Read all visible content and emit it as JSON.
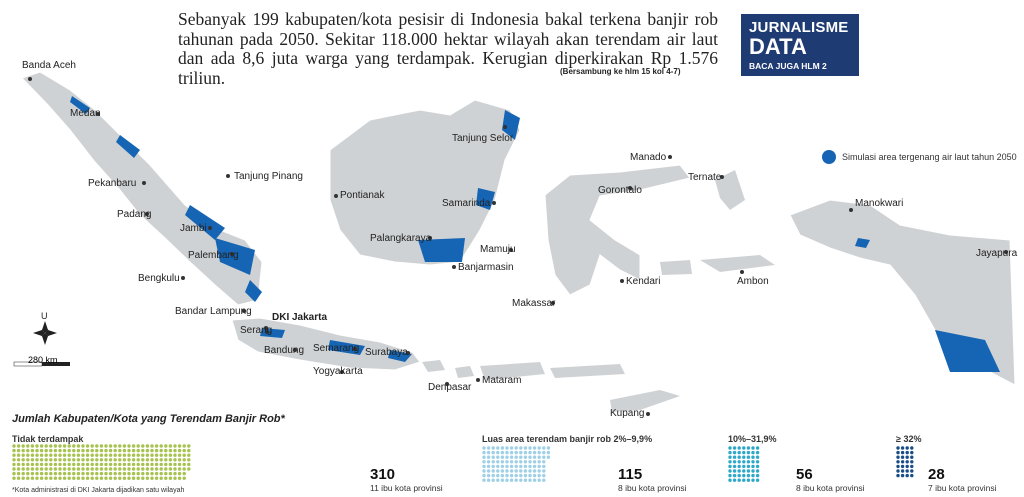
{
  "headline": "Sebanyak 199 kabupaten/kota pesisir di Indonesia bakal terkena banjir rob tahunan pada 2050. Sekitar 118.000 hektar wilayah akan terendam air laut dan ada 8,6 juta warga yang terdampak. Kerugian diperkirakan Rp 1.576 triliun.",
  "continued": "(Bersambung ke hlm 15 kol 4-7)",
  "badge": {
    "line1": "JURNALISME",
    "line2": "DATA",
    "line3": "BACA JUGA HLM 2"
  },
  "map_legend": "Simulasi area tergenang air laut tahun 2050",
  "cities": {
    "banda_aceh": "Banda Aceh",
    "medan": "Medan",
    "pekanbaru": "Pekanbaru",
    "tanjung_pinang": "Tanjung Pinang",
    "padang": "Padang",
    "jambi": "Jambi",
    "palembang": "Palembang",
    "bengkulu": "Bengkulu",
    "bandar_lampung": "Bandar Lampung",
    "serang": "Serang",
    "dki_jakarta": "DKI Jakarta",
    "bandung": "Bandung",
    "semarang": "Semarang",
    "yogyakarta": "Yogyakarta",
    "surabaya": "Surabaya",
    "denpasar": "Denpasar",
    "mataram": "Mataram",
    "kupang": "Kupang",
    "pontianak": "Pontianak",
    "palangkaraya": "Palangkaraya",
    "banjarmasin": "Banjarmasin",
    "samarinda": "Samarinda",
    "tanjung_selor": "Tanjung Selor",
    "mamuju": "Mamuju",
    "makassar": "Makassar",
    "kendari": "Kendari",
    "gorontalo": "Gorontalo",
    "manado": "Manado",
    "ternate": "Ternate",
    "ambon": "Ambon",
    "manokwari": "Manokwari",
    "jayapura": "Jayapura"
  },
  "scale": {
    "north": "U",
    "distance": "280 km"
  },
  "chart_title": "Jumlah Kabupaten/Kota yang Terendam Banjir Rob*",
  "chart_data": {
    "type": "table",
    "groups": [
      {
        "label": "Tidak terdampak",
        "count": "310",
        "note": "11 ibu kota provinsi",
        "color": "#a7c24f"
      },
      {
        "label": "Luas area terendam banjir rob 2%–9,9%",
        "count": "115",
        "note": "8 ibu kota provinsi",
        "color": "#9ed0e6"
      },
      {
        "label": "10%–31,9%",
        "count": "56",
        "note": "8 ibu kota provinsi",
        "color": "#2ea8c9"
      },
      {
        "label": "≥ 32%",
        "count": "28",
        "note": "7 ibu kota provinsi",
        "color": "#1a4d86"
      }
    ]
  },
  "footnote": "*Kota administrasi di DKI Jakarta dijadikan satu wilayah"
}
